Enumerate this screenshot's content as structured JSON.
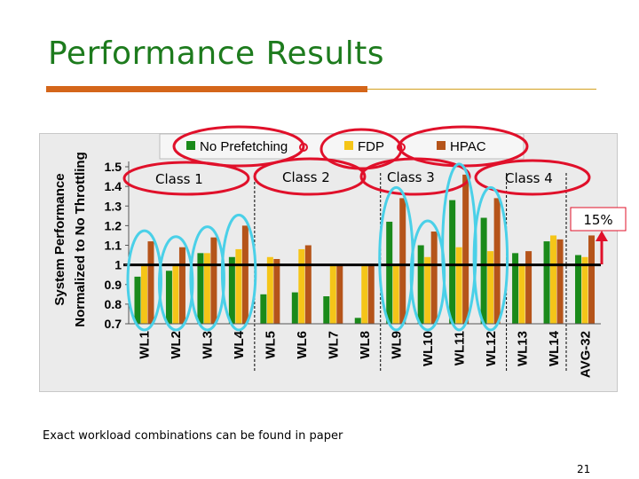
{
  "slide": {
    "title": "Performance Results",
    "footnote": "Exact workload combinations can be found in paper",
    "page_number": "21"
  },
  "annotations": {
    "class_labels": [
      "Class 1",
      "Class 2",
      "Class 3",
      "Class 4"
    ],
    "gain_label": "15%"
  },
  "colors": {
    "title": "#1d7b1d",
    "no_prefetching": "#1a8a1a",
    "fdp": "#f5c518",
    "hpac": "#b5541a",
    "circles_red": "#e0102a",
    "circles_blue": "#4ad0e8"
  },
  "chart_data": {
    "type": "bar",
    "ylabel": "System Performance Normalized to No Throttling",
    "ylim": [
      0.7,
      1.5
    ],
    "yticks": [
      "1.5",
      "1.4",
      "1.3",
      "1.2",
      "1.1",
      "1",
      "0.9",
      "0.8",
      "0.7"
    ],
    "categories": [
      "WL1",
      "WL2",
      "WL3",
      "WL4",
      "WL5",
      "WL6",
      "WL7",
      "WL8",
      "WL9",
      "WL10",
      "WL11",
      "WL12",
      "WL13",
      "WL14",
      "AVG-32"
    ],
    "series": [
      {
        "name": "No Prefetching",
        "values": [
          0.94,
          0.97,
          1.06,
          1.04,
          0.85,
          0.86,
          0.84,
          0.73,
          1.22,
          1.1,
          1.33,
          1.24,
          1.06,
          1.12,
          1.05
        ]
      },
      {
        "name": "FDP",
        "values": [
          1.0,
          1.0,
          1.06,
          1.08,
          1.04,
          1.08,
          1.0,
          1.0,
          1.0,
          1.04,
          1.09,
          1.07,
          1.0,
          1.15,
          1.04
        ]
      },
      {
        "name": "HPAC",
        "values": [
          1.12,
          1.09,
          1.14,
          1.2,
          1.03,
          1.1,
          1.0,
          1.0,
          1.34,
          1.17,
          1.46,
          1.34,
          1.07,
          1.13,
          1.15
        ]
      }
    ],
    "legend_position": "top",
    "grid": false,
    "class_boundaries_after": [
      "WL4",
      "WL8",
      "WL12"
    ]
  }
}
